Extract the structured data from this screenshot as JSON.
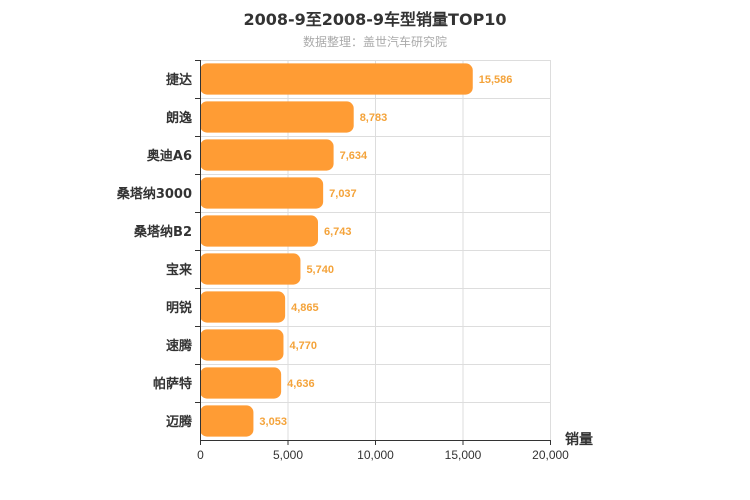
{
  "colors": {
    "bar": "#ff9c34",
    "label": "#f4a33a",
    "grid": "#dddddd",
    "axis": "#333333",
    "text": "#333333"
  },
  "chart_data": {
    "type": "bar",
    "orientation": "horizontal",
    "title": "2008-9至2008-9车型销量TOP10",
    "subtitle": "数据整理：盖世汽车研究院",
    "xlabel": "销量",
    "ylabel": "",
    "xlim": [
      0,
      20000
    ],
    "xticks": [
      0,
      5000,
      10000,
      15000,
      20000
    ],
    "xtick_labels": [
      "0",
      "5,000",
      "10,000",
      "15,000",
      "20,000"
    ],
    "grid": true,
    "legend": "none",
    "categories": [
      "捷达",
      "朗逸",
      "奥迪A6",
      "桑塔纳3000",
      "桑塔纳B2",
      "宝来",
      "明锐",
      "速腾",
      "帕萨特",
      "迈腾"
    ],
    "values": [
      15586,
      8783,
      7634,
      7037,
      6743,
      5740,
      4865,
      4770,
      4636,
      3053
    ],
    "value_labels": [
      "15,586",
      "8,783",
      "7,634",
      "7,037",
      "6,743",
      "5,740",
      "4,865",
      "4,770",
      "4,636",
      "3,053"
    ]
  }
}
